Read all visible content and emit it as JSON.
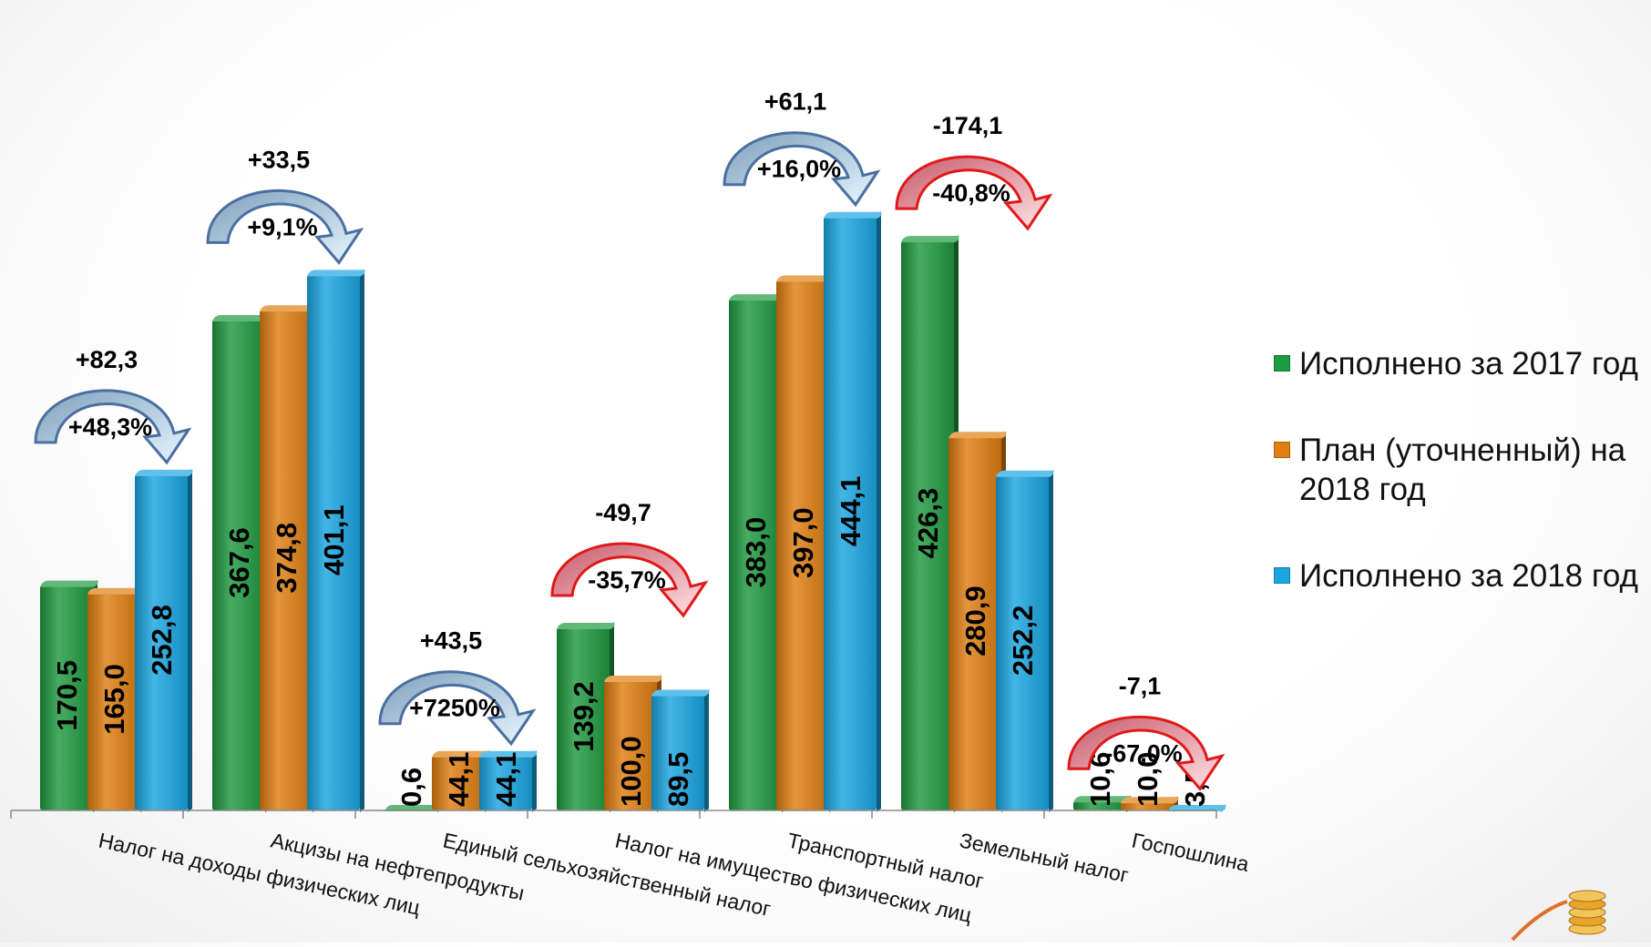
{
  "chart_data": {
    "type": "bar",
    "categories": [
      "Налог на доходы физических лиц",
      "Акцизы на нефтепродукты",
      "Единый сельхозяйственный налог",
      "Налог на имущество физических лиц",
      "Транспортный налог",
      "Земельный налог",
      "Госпошлина"
    ],
    "series": [
      {
        "name": "Исполнено за 2017 год",
        "color": "#1e9a3f",
        "values": [
          170.5,
          367.6,
          0.6,
          139.2,
          383.0,
          426.3,
          10.6
        ],
        "labels": [
          "170,5",
          "367,6",
          "0,6",
          "139,2",
          "383,0",
          "426,3",
          "10,6"
        ]
      },
      {
        "name": "План (уточненный) на 2018 год",
        "color": "#e07e10",
        "values": [
          165.0,
          374.8,
          44.1,
          100.0,
          397.0,
          280.9,
          10.0
        ],
        "labels": [
          "165,0",
          "374,8",
          "44,1",
          "100,0",
          "397,0",
          "280,9",
          "10,0"
        ]
      },
      {
        "name": "Исполнено за 2018 год",
        "color": "#1aa6e2",
        "values": [
          252.8,
          401.1,
          44.1,
          89.5,
          444.1,
          252.2,
          3.5
        ],
        "labels": [
          "252,8",
          "401,1",
          "44,1",
          "89,5",
          "444,1",
          "252,2",
          "3,5"
        ]
      }
    ],
    "changes": [
      {
        "abs": "+82,3",
        "pct": "+48,3%",
        "direction": "up"
      },
      {
        "abs": "+33,5",
        "pct": "+9,1%",
        "direction": "up"
      },
      {
        "abs": "+43,5",
        "pct": "+7250%",
        "direction": "up"
      },
      {
        "abs": "-49,7",
        "pct": "-35,7%",
        "direction": "down"
      },
      {
        "abs": "+61,1",
        "pct": "+16,0%",
        "direction": "up"
      },
      {
        "abs": "-174,1",
        "pct": "-40,8%",
        "direction": "down"
      },
      {
        "abs": "-7,1",
        "pct": "-67,0%",
        "direction": "down"
      }
    ],
    "ylim": [
      0,
      500
    ],
    "grid": false,
    "legend_position": "right"
  }
}
